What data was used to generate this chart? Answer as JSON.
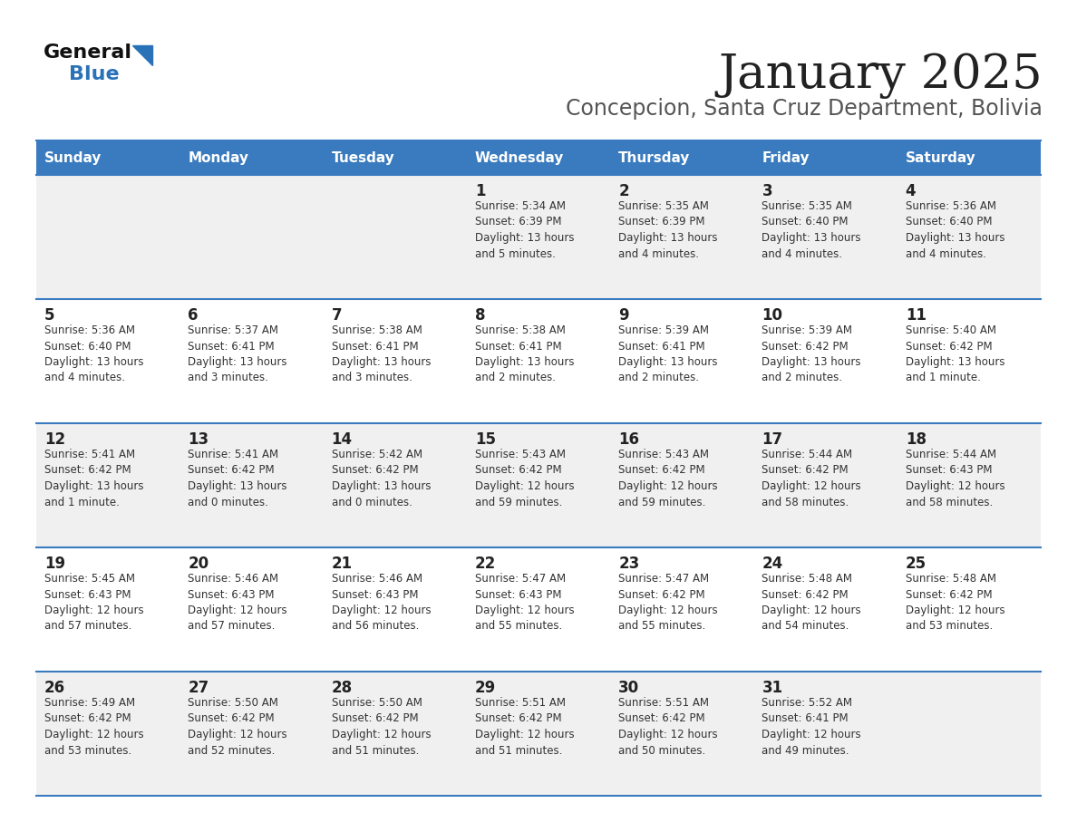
{
  "title": "January 2025",
  "subtitle": "Concepcion, Santa Cruz Department, Bolivia",
  "days_of_week": [
    "Sunday",
    "Monday",
    "Tuesday",
    "Wednesday",
    "Thursday",
    "Friday",
    "Saturday"
  ],
  "header_bg": "#3a7bbf",
  "header_text": "#ffffff",
  "row_bg_odd": "#f0f0f0",
  "row_bg_even": "#ffffff",
  "day_num_color": "#222222",
  "cell_text_color": "#333333",
  "border_color": "#3a7bbf",
  "title_color": "#222222",
  "subtitle_color": "#555555",
  "logo_general_color": "#111111",
  "logo_blue_color": "#2a72b8",
  "weeks": [
    [
      {
        "day": null,
        "info": ""
      },
      {
        "day": null,
        "info": ""
      },
      {
        "day": null,
        "info": ""
      },
      {
        "day": 1,
        "info": "Sunrise: 5:34 AM\nSunset: 6:39 PM\nDaylight: 13 hours\nand 5 minutes."
      },
      {
        "day": 2,
        "info": "Sunrise: 5:35 AM\nSunset: 6:39 PM\nDaylight: 13 hours\nand 4 minutes."
      },
      {
        "day": 3,
        "info": "Sunrise: 5:35 AM\nSunset: 6:40 PM\nDaylight: 13 hours\nand 4 minutes."
      },
      {
        "day": 4,
        "info": "Sunrise: 5:36 AM\nSunset: 6:40 PM\nDaylight: 13 hours\nand 4 minutes."
      }
    ],
    [
      {
        "day": 5,
        "info": "Sunrise: 5:36 AM\nSunset: 6:40 PM\nDaylight: 13 hours\nand 4 minutes."
      },
      {
        "day": 6,
        "info": "Sunrise: 5:37 AM\nSunset: 6:41 PM\nDaylight: 13 hours\nand 3 minutes."
      },
      {
        "day": 7,
        "info": "Sunrise: 5:38 AM\nSunset: 6:41 PM\nDaylight: 13 hours\nand 3 minutes."
      },
      {
        "day": 8,
        "info": "Sunrise: 5:38 AM\nSunset: 6:41 PM\nDaylight: 13 hours\nand 2 minutes."
      },
      {
        "day": 9,
        "info": "Sunrise: 5:39 AM\nSunset: 6:41 PM\nDaylight: 13 hours\nand 2 minutes."
      },
      {
        "day": 10,
        "info": "Sunrise: 5:39 AM\nSunset: 6:42 PM\nDaylight: 13 hours\nand 2 minutes."
      },
      {
        "day": 11,
        "info": "Sunrise: 5:40 AM\nSunset: 6:42 PM\nDaylight: 13 hours\nand 1 minute."
      }
    ],
    [
      {
        "day": 12,
        "info": "Sunrise: 5:41 AM\nSunset: 6:42 PM\nDaylight: 13 hours\nand 1 minute."
      },
      {
        "day": 13,
        "info": "Sunrise: 5:41 AM\nSunset: 6:42 PM\nDaylight: 13 hours\nand 0 minutes."
      },
      {
        "day": 14,
        "info": "Sunrise: 5:42 AM\nSunset: 6:42 PM\nDaylight: 13 hours\nand 0 minutes."
      },
      {
        "day": 15,
        "info": "Sunrise: 5:43 AM\nSunset: 6:42 PM\nDaylight: 12 hours\nand 59 minutes."
      },
      {
        "day": 16,
        "info": "Sunrise: 5:43 AM\nSunset: 6:42 PM\nDaylight: 12 hours\nand 59 minutes."
      },
      {
        "day": 17,
        "info": "Sunrise: 5:44 AM\nSunset: 6:42 PM\nDaylight: 12 hours\nand 58 minutes."
      },
      {
        "day": 18,
        "info": "Sunrise: 5:44 AM\nSunset: 6:43 PM\nDaylight: 12 hours\nand 58 minutes."
      }
    ],
    [
      {
        "day": 19,
        "info": "Sunrise: 5:45 AM\nSunset: 6:43 PM\nDaylight: 12 hours\nand 57 minutes."
      },
      {
        "day": 20,
        "info": "Sunrise: 5:46 AM\nSunset: 6:43 PM\nDaylight: 12 hours\nand 57 minutes."
      },
      {
        "day": 21,
        "info": "Sunrise: 5:46 AM\nSunset: 6:43 PM\nDaylight: 12 hours\nand 56 minutes."
      },
      {
        "day": 22,
        "info": "Sunrise: 5:47 AM\nSunset: 6:43 PM\nDaylight: 12 hours\nand 55 minutes."
      },
      {
        "day": 23,
        "info": "Sunrise: 5:47 AM\nSunset: 6:42 PM\nDaylight: 12 hours\nand 55 minutes."
      },
      {
        "day": 24,
        "info": "Sunrise: 5:48 AM\nSunset: 6:42 PM\nDaylight: 12 hours\nand 54 minutes."
      },
      {
        "day": 25,
        "info": "Sunrise: 5:48 AM\nSunset: 6:42 PM\nDaylight: 12 hours\nand 53 minutes."
      }
    ],
    [
      {
        "day": 26,
        "info": "Sunrise: 5:49 AM\nSunset: 6:42 PM\nDaylight: 12 hours\nand 53 minutes."
      },
      {
        "day": 27,
        "info": "Sunrise: 5:50 AM\nSunset: 6:42 PM\nDaylight: 12 hours\nand 52 minutes."
      },
      {
        "day": 28,
        "info": "Sunrise: 5:50 AM\nSunset: 6:42 PM\nDaylight: 12 hours\nand 51 minutes."
      },
      {
        "day": 29,
        "info": "Sunrise: 5:51 AM\nSunset: 6:42 PM\nDaylight: 12 hours\nand 51 minutes."
      },
      {
        "day": 30,
        "info": "Sunrise: 5:51 AM\nSunset: 6:42 PM\nDaylight: 12 hours\nand 50 minutes."
      },
      {
        "day": 31,
        "info": "Sunrise: 5:52 AM\nSunset: 6:41 PM\nDaylight: 12 hours\nand 49 minutes."
      },
      {
        "day": null,
        "info": ""
      }
    ]
  ]
}
